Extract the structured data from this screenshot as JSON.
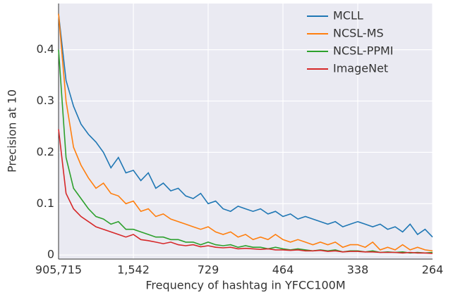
{
  "chart_data": {
    "type": "line",
    "xlabel": "Frequency of hashtag in YFCC100M",
    "ylabel": "Precision at 10",
    "x": [
      0,
      1,
      2,
      3,
      4,
      5,
      6,
      7,
      8,
      9,
      10,
      11,
      12,
      13,
      14,
      15,
      16,
      17,
      18,
      19,
      20,
      21,
      22,
      23,
      24,
      25,
      26,
      27,
      28,
      29,
      30,
      31,
      32,
      33,
      34,
      35,
      36,
      37,
      38,
      39,
      40,
      41,
      42,
      43,
      44,
      45,
      46,
      47,
      48,
      49,
      50
    ],
    "xlim": [
      0,
      50
    ],
    "xticks": [
      {
        "value": 0,
        "label": "905,715"
      },
      {
        "value": 10,
        "label": "1,542"
      },
      {
        "value": 20,
        "label": "729"
      },
      {
        "value": 30,
        "label": "464"
      },
      {
        "value": 40,
        "label": "338"
      },
      {
        "value": 50,
        "label": "264"
      }
    ],
    "ylim": [
      -0.008,
      0.49
    ],
    "yticks": [
      0,
      0.1,
      0.2,
      0.3,
      0.4
    ],
    "grid": true,
    "legend": "upper right",
    "series": [
      {
        "name": "MCLL",
        "color": "#1f77b4",
        "values": [
          0.47,
          0.34,
          0.29,
          0.255,
          0.235,
          0.22,
          0.2,
          0.17,
          0.19,
          0.16,
          0.165,
          0.145,
          0.16,
          0.13,
          0.14,
          0.125,
          0.13,
          0.115,
          0.11,
          0.12,
          0.1,
          0.105,
          0.09,
          0.085,
          0.095,
          0.09,
          0.085,
          0.09,
          0.08,
          0.085,
          0.075,
          0.08,
          0.07,
          0.075,
          0.07,
          0.065,
          0.06,
          0.065,
          0.055,
          0.06,
          0.065,
          0.06,
          0.055,
          0.06,
          0.05,
          0.055,
          0.045,
          0.06,
          0.04,
          0.05,
          0.035
        ]
      },
      {
        "name": "NCSL-MS",
        "color": "#ff7f0e",
        "values": [
          0.47,
          0.3,
          0.21,
          0.175,
          0.15,
          0.13,
          0.14,
          0.12,
          0.115,
          0.1,
          0.105,
          0.085,
          0.09,
          0.075,
          0.08,
          0.07,
          0.065,
          0.06,
          0.055,
          0.05,
          0.055,
          0.045,
          0.04,
          0.045,
          0.035,
          0.04,
          0.03,
          0.035,
          0.03,
          0.04,
          0.03,
          0.025,
          0.03,
          0.025,
          0.02,
          0.025,
          0.02,
          0.025,
          0.015,
          0.02,
          0.02,
          0.015,
          0.025,
          0.01,
          0.015,
          0.01,
          0.02,
          0.01,
          0.015,
          0.01,
          0.008
        ]
      },
      {
        "name": "NCSL-PPMI",
        "color": "#2ca02c",
        "values": [
          0.4,
          0.19,
          0.13,
          0.11,
          0.09,
          0.075,
          0.07,
          0.06,
          0.065,
          0.05,
          0.05,
          0.045,
          0.04,
          0.035,
          0.035,
          0.03,
          0.03,
          0.025,
          0.025,
          0.02,
          0.025,
          0.02,
          0.018,
          0.02,
          0.015,
          0.018,
          0.015,
          0.015,
          0.012,
          0.015,
          0.012,
          0.01,
          0.012,
          0.01,
          0.008,
          0.01,
          0.008,
          0.01,
          0.006,
          0.008,
          0.008,
          0.006,
          0.008,
          0.005,
          0.006,
          0.005,
          0.006,
          0.004,
          0.005,
          0.004,
          0.005
        ]
      },
      {
        "name": "ImageNet",
        "color": "#d62728",
        "values": [
          0.245,
          0.12,
          0.09,
          0.075,
          0.065,
          0.055,
          0.05,
          0.045,
          0.04,
          0.035,
          0.04,
          0.03,
          0.028,
          0.025,
          0.022,
          0.025,
          0.02,
          0.018,
          0.02,
          0.016,
          0.018,
          0.015,
          0.014,
          0.015,
          0.012,
          0.013,
          0.012,
          0.011,
          0.012,
          0.01,
          0.01,
          0.009,
          0.01,
          0.008,
          0.008,
          0.009,
          0.007,
          0.008,
          0.006,
          0.007,
          0.007,
          0.006,
          0.006,
          0.005,
          0.005,
          0.005,
          0.004,
          0.005,
          0.004,
          0.004,
          0.003
        ]
      }
    ]
  }
}
